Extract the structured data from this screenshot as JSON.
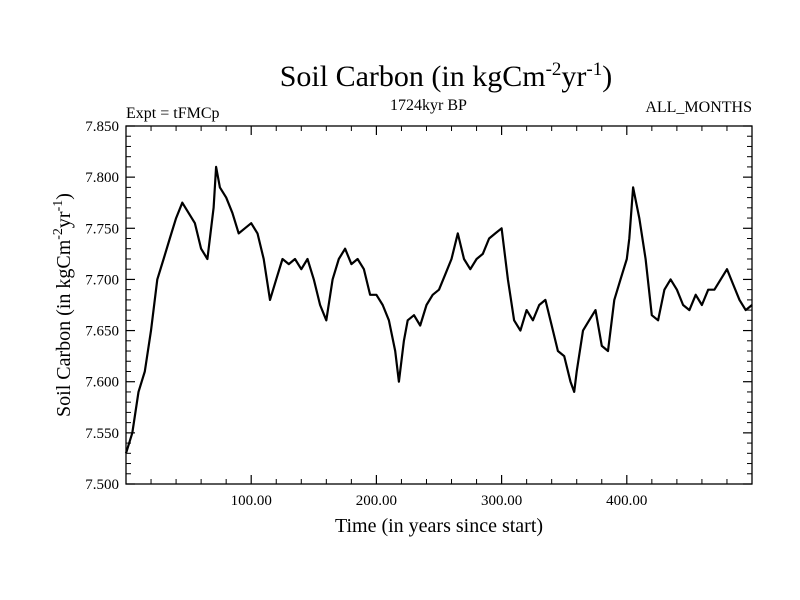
{
  "chart_data": {
    "type": "line",
    "title": {
      "main": "Soil Carbon (in kgCm",
      "sup1": "-2",
      "mid": "yr",
      "sup2": "-1",
      "end": ")"
    },
    "left_label": "Expt = tFMCp",
    "center_label": "1724kyr BP",
    "right_label": "ALL_MONTHS",
    "xlabel": "Time (in years since start)",
    "ylabel": {
      "main": "Soil Carbon (in kgCm",
      "sup1": "-2",
      "mid": "yr",
      "sup2": "-1",
      "end": ")"
    },
    "xlim": [
      0,
      500
    ],
    "ylim": [
      7.5,
      7.85
    ],
    "xticks": [
      100,
      200,
      300,
      400
    ],
    "xtick_labels": [
      "100.00",
      "200.00",
      "300.00",
      "400.00"
    ],
    "yticks": [
      7.5,
      7.55,
      7.6,
      7.65,
      7.7,
      7.75,
      7.8,
      7.85
    ],
    "ytick_labels": [
      "7.500",
      "7.550",
      "7.600",
      "7.650",
      "7.700",
      "7.750",
      "7.800",
      "7.850"
    ],
    "series": [
      {
        "name": "Soil Carbon",
        "x": [
          0,
          5,
          10,
          15,
          20,
          25,
          30,
          35,
          40,
          45,
          50,
          55,
          60,
          65,
          70,
          72,
          75,
          80,
          85,
          90,
          95,
          100,
          105,
          110,
          115,
          120,
          125,
          130,
          135,
          140,
          145,
          150,
          155,
          160,
          165,
          170,
          175,
          180,
          185,
          190,
          195,
          200,
          205,
          210,
          215,
          218,
          222,
          225,
          230,
          235,
          240,
          245,
          250,
          255,
          260,
          265,
          270,
          275,
          280,
          285,
          290,
          295,
          300,
          305,
          310,
          315,
          320,
          325,
          330,
          335,
          340,
          345,
          350,
          355,
          358,
          360,
          365,
          370,
          375,
          380,
          385,
          390,
          395,
          400,
          402,
          405,
          410,
          415,
          420,
          425,
          430,
          435,
          440,
          445,
          450,
          455,
          460,
          465,
          470,
          475,
          480,
          485,
          490,
          495,
          500
        ],
        "values": [
          7.53,
          7.55,
          7.59,
          7.61,
          7.65,
          7.7,
          7.72,
          7.74,
          7.76,
          7.775,
          7.765,
          7.755,
          7.73,
          7.72,
          7.77,
          7.81,
          7.79,
          7.78,
          7.765,
          7.745,
          7.75,
          7.755,
          7.745,
          7.72,
          7.68,
          7.7,
          7.72,
          7.715,
          7.72,
          7.71,
          7.72,
          7.7,
          7.675,
          7.66,
          7.7,
          7.72,
          7.73,
          7.715,
          7.72,
          7.71,
          7.685,
          7.685,
          7.675,
          7.66,
          7.63,
          7.6,
          7.64,
          7.66,
          7.665,
          7.655,
          7.675,
          7.685,
          7.69,
          7.705,
          7.72,
          7.745,
          7.72,
          7.71,
          7.72,
          7.725,
          7.74,
          7.745,
          7.75,
          7.7,
          7.66,
          7.65,
          7.67,
          7.66,
          7.675,
          7.68,
          7.655,
          7.63,
          7.625,
          7.6,
          7.59,
          7.61,
          7.65,
          7.66,
          7.67,
          7.635,
          7.63,
          7.68,
          7.7,
          7.72,
          7.74,
          7.79,
          7.76,
          7.72,
          7.665,
          7.66,
          7.69,
          7.7,
          7.69,
          7.675,
          7.67,
          7.685,
          7.675,
          7.69,
          7.69,
          7.7,
          7.71,
          7.695,
          7.68,
          7.67,
          7.675
        ]
      }
    ]
  }
}
